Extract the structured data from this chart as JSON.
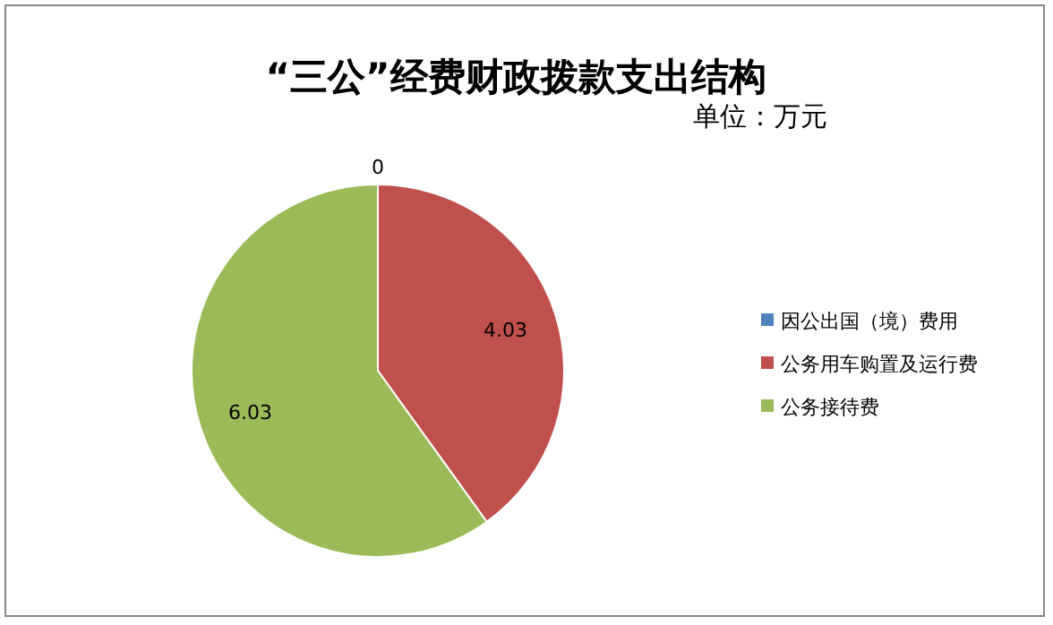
{
  "chart_data": {
    "type": "pie",
    "title": "“三公”经费财政拨款支出结构",
    "subtitle": "单位：万元",
    "categories": [
      "因公出国（境）费用",
      "公务用车购置及运行费",
      "公务接待费"
    ],
    "values": [
      0,
      4.03,
      6.03
    ],
    "colors": [
      "#4f81bd",
      "#c0504d",
      "#9bbb59"
    ],
    "value_labels": [
      "0",
      "4.03",
      "6.03"
    ],
    "legend": "right"
  }
}
